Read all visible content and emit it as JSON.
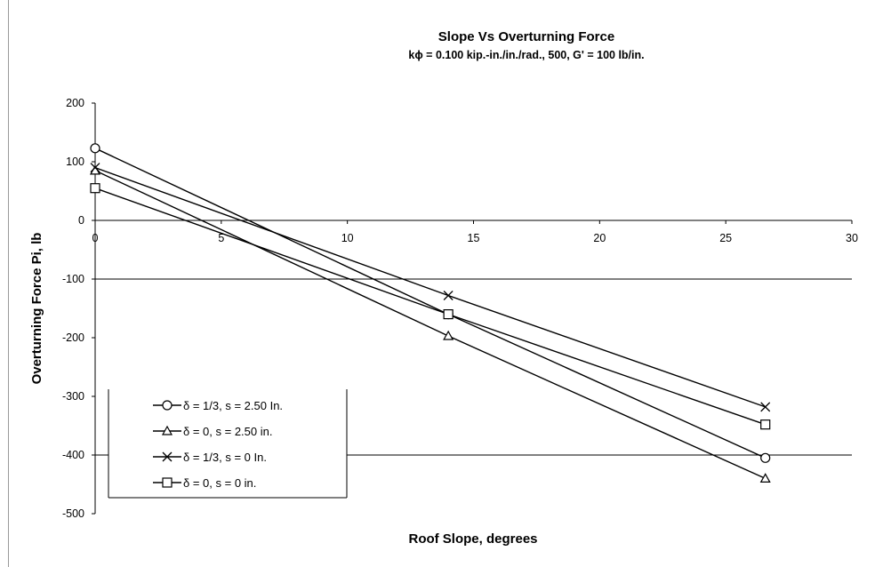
{
  "chart_data": {
    "type": "line",
    "title": "Slope Vs Overturning Force",
    "subtitle": "kϕ = 0.100 kip.-in./in./rad., 500, G' = 100 lb/in.",
    "xlabel": "Roof Slope, degrees",
    "ylabel": "Overturning Force Pi, lb",
    "xlim": [
      0,
      30
    ],
    "ylim": [
      -500,
      200
    ],
    "xticks": [
      0,
      5,
      10,
      15,
      20,
      25,
      30
    ],
    "yticks": [
      200,
      100,
      0,
      -100,
      -200,
      -300,
      -400,
      -500
    ],
    "gridlines_y": [
      -100,
      -400
    ],
    "legend_position": "bottom-left",
    "series": [
      {
        "name": "δ = 1/3, s = 2.50 In.",
        "marker": "circle",
        "x": [
          0,
          14,
          26.57
        ],
        "y": [
          123,
          -160,
          -405
        ]
      },
      {
        "name": "δ = 0, s = 2.50 in.",
        "marker": "triangle",
        "x": [
          0,
          14,
          26.57
        ],
        "y": [
          85,
          -197,
          -440
        ]
      },
      {
        "name": "δ = 1/3, s = 0 In.",
        "marker": "x",
        "x": [
          0,
          14,
          26.57
        ],
        "y": [
          90,
          -128,
          -318
        ]
      },
      {
        "name": "δ = 0, s = 0 in.",
        "marker": "square",
        "x": [
          0,
          14,
          26.57
        ],
        "y": [
          55,
          -160,
          -348
        ]
      }
    ]
  }
}
